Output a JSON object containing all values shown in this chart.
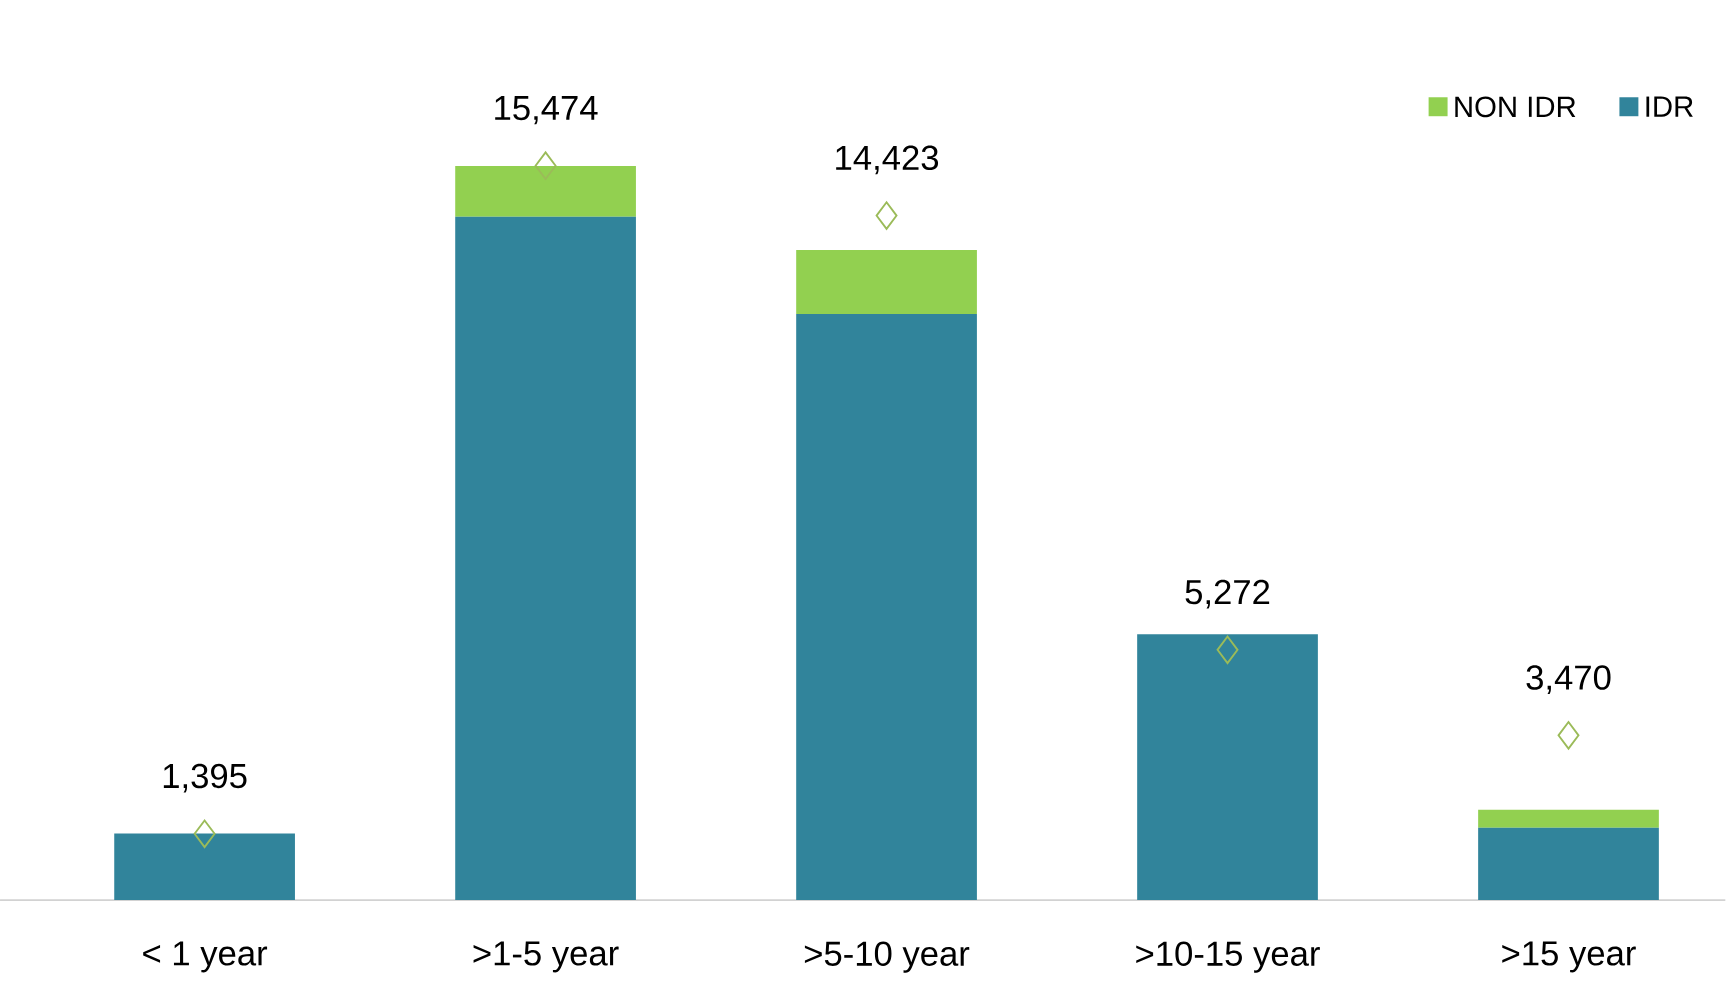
{
  "chart_data": {
    "type": "bar",
    "stacked": true,
    "categories": [
      "< 1 year",
      ">1-5 year",
      ">5-10 year",
      ">10-15 year",
      ">15 year"
    ],
    "tick_labels": "x",
    "legend": "top right",
    "series": [
      {
        "name": "IDR",
        "color": "#31849b",
        "values": [
          1400,
          14400,
          12350,
          5600,
          1520
        ]
      },
      {
        "name": "NON IDR",
        "color": "#92d050",
        "values": [
          0,
          1070,
          1350,
          0,
          380
        ]
      },
      {
        "type": "scatter",
        "marker": "diamond",
        "color": "#9bbb59",
        "values": [
          1395,
          15474,
          14423,
          5272,
          3470
        ],
        "value_labels": [
          "1,395",
          "15,474",
          "14,423",
          "5,272",
          "3,470"
        ]
      }
    ]
  }
}
